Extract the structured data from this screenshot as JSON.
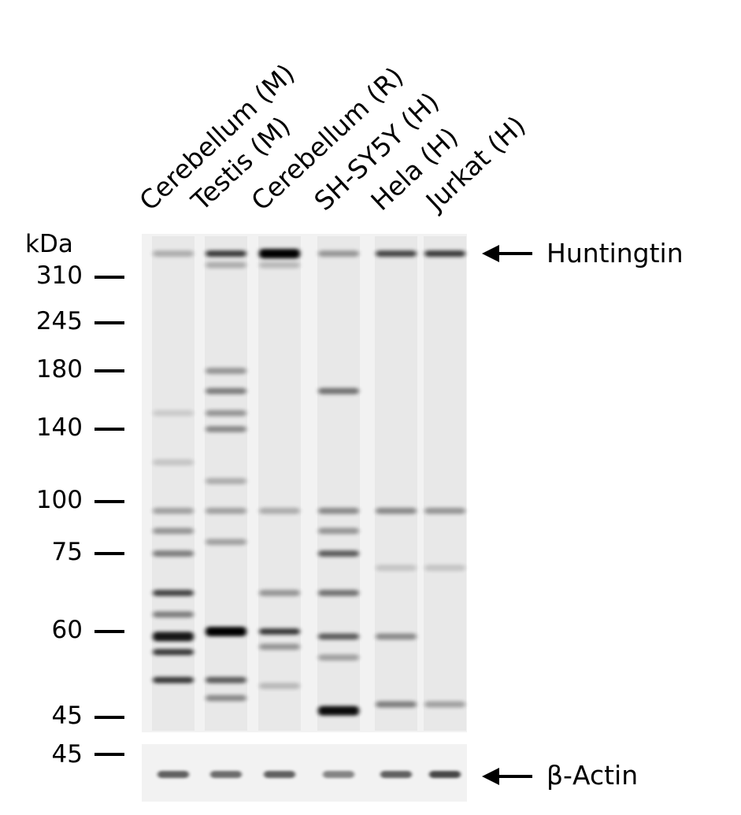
{
  "lanes": [
    "Cerebellum (M)",
    "Testis (M)",
    "Cerebellum (R)",
    "SH-SY5Y (H)",
    "Hela (H)",
    "Jurkat (H)"
  ],
  "unit_label": "kDa",
  "markers": [
    {
      "label": "310",
      "kda": 310
    },
    {
      "label": "245",
      "kda": 245
    },
    {
      "label": "180",
      "kda": 180
    },
    {
      "label": "140",
      "kda": 140
    },
    {
      "label": "100",
      "kda": 100
    },
    {
      "label": "75",
      "kda": 75
    },
    {
      "label": "60",
      "kda": 60
    },
    {
      "label": "45",
      "kda": 45
    }
  ],
  "actin_marker": {
    "label": "45"
  },
  "annotations": {
    "target": "Huntingtin",
    "loading_control": "β-Actin"
  },
  "bands": [
    [
      {
        "kda": 350,
        "i": 0.25
      },
      {
        "kda": 95,
        "i": 0.3
      },
      {
        "kda": 85,
        "i": 0.35
      },
      {
        "kda": 75,
        "i": 0.45
      },
      {
        "kda": 67,
        "i": 0.7
      },
      {
        "kda": 63,
        "i": 0.45
      },
      {
        "kda": 59,
        "i": 0.9
      },
      {
        "kda": 56,
        "i": 0.75
      },
      {
        "kda": 51,
        "i": 0.75
      },
      {
        "kda": 150,
        "i": 0.12
      },
      {
        "kda": 120,
        "i": 0.15
      }
    ],
    [
      {
        "kda": 350,
        "i": 0.75
      },
      {
        "kda": 330,
        "i": 0.25
      },
      {
        "kda": 180,
        "i": 0.35
      },
      {
        "kda": 165,
        "i": 0.45
      },
      {
        "kda": 150,
        "i": 0.35
      },
      {
        "kda": 140,
        "i": 0.4
      },
      {
        "kda": 110,
        "i": 0.25
      },
      {
        "kda": 95,
        "i": 0.3
      },
      {
        "kda": 80,
        "i": 0.3
      },
      {
        "kda": 60,
        "i": 1.0
      },
      {
        "kda": 51,
        "i": 0.6
      },
      {
        "kda": 48,
        "i": 0.4
      }
    ],
    [
      {
        "kda": 350,
        "i": 1.0
      },
      {
        "kda": 330,
        "i": 0.2
      },
      {
        "kda": 95,
        "i": 0.25
      },
      {
        "kda": 67,
        "i": 0.35
      },
      {
        "kda": 60,
        "i": 0.75
      },
      {
        "kda": 57,
        "i": 0.35
      },
      {
        "kda": 50,
        "i": 0.2
      }
    ],
    [
      {
        "kda": 350,
        "i": 0.35
      },
      {
        "kda": 165,
        "i": 0.5
      },
      {
        "kda": 95,
        "i": 0.4
      },
      {
        "kda": 85,
        "i": 0.35
      },
      {
        "kda": 75,
        "i": 0.6
      },
      {
        "kda": 67,
        "i": 0.5
      },
      {
        "kda": 59,
        "i": 0.6
      },
      {
        "kda": 55,
        "i": 0.3
      },
      {
        "kda": 46,
        "i": 0.95
      }
    ],
    [
      {
        "kda": 350,
        "i": 0.7
      },
      {
        "kda": 95,
        "i": 0.4
      },
      {
        "kda": 72,
        "i": 0.15
      },
      {
        "kda": 59,
        "i": 0.4
      },
      {
        "kda": 47,
        "i": 0.45
      }
    ],
    [
      {
        "kda": 350,
        "i": 0.75
      },
      {
        "kda": 95,
        "i": 0.35
      },
      {
        "kda": 72,
        "i": 0.15
      },
      {
        "kda": 47,
        "i": 0.3
      }
    ]
  ],
  "actin_bands": [
    0.6,
    0.55,
    0.6,
    0.45,
    0.6,
    0.7
  ],
  "colors": {
    "background": "#f2f2f2",
    "band": "#000000"
  }
}
